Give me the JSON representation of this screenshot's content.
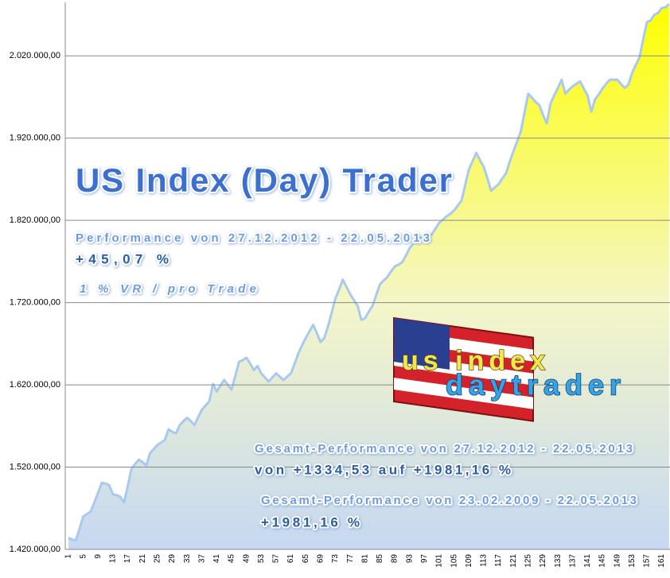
{
  "chart_data": {
    "type": "area",
    "categories": [
      "1",
      null,
      null,
      null,
      "5",
      null,
      null,
      null,
      "9",
      null,
      null,
      null,
      "13",
      null,
      null,
      null,
      "17",
      null,
      null,
      null,
      "21",
      null,
      null,
      null,
      "25",
      null,
      null,
      null,
      "29",
      null,
      null,
      null,
      "33",
      null,
      null,
      null,
      "37",
      null,
      null,
      null,
      "41",
      null,
      null,
      null,
      "45",
      null,
      null,
      null,
      "49",
      null,
      null,
      null,
      "53",
      null,
      null,
      null,
      "57",
      null,
      null,
      null,
      "61",
      null,
      null,
      null,
      "65",
      null,
      null,
      null,
      "69",
      null,
      null,
      null,
      "73",
      null,
      null,
      null,
      "77",
      null,
      null,
      null,
      "81",
      null,
      null,
      null,
      "85",
      null,
      null,
      null,
      "89",
      null,
      null,
      null,
      "93",
      null,
      null,
      null,
      "97",
      null,
      null,
      null,
      "101",
      null,
      null,
      null,
      "105",
      null,
      null,
      null,
      "109",
      null,
      null,
      null,
      "113",
      null,
      null,
      null,
      "117",
      null,
      null,
      null,
      "121",
      null,
      null,
      null,
      "125",
      null,
      null,
      null,
      "129",
      null,
      null,
      null,
      "133",
      null,
      null,
      null,
      "137",
      null,
      null,
      null,
      "141",
      null,
      null,
      null,
      "145",
      null,
      null,
      null,
      "149",
      null,
      null,
      null,
      "153",
      null,
      null,
      null,
      "157",
      null,
      null,
      null,
      "161",
      null,
      null
    ],
    "values": [
      1434000,
      1432000,
      1431000,
      1445000,
      1460000,
      1463000,
      1466000,
      1477000,
      1489000,
      1501000,
      1500000,
      1498000,
      1487000,
      1486000,
      1484000,
      1477000,
      1497000,
      1518000,
      1524000,
      1529000,
      1526000,
      1522000,
      1537000,
      1542000,
      1547000,
      1550000,
      1553000,
      1566000,
      1563000,
      1561000,
      1571000,
      1576000,
      1580000,
      1576000,
      1571000,
      1581000,
      1590000,
      1595000,
      1600000,
      1621000,
      1612000,
      1619000,
      1626000,
      1620000,
      1614000,
      1631000,
      1648000,
      1650000,
      1653000,
      1646000,
      1638000,
      1643000,
      1634000,
      1629000,
      1624000,
      1629000,
      1634000,
      1630000,
      1626000,
      1630000,
      1634000,
      1646000,
      1658000,
      1668000,
      1677000,
      1685000,
      1693000,
      1683000,
      1672000,
      1677000,
      1691000,
      1708000,
      1725000,
      1736000,
      1748000,
      1739000,
      1730000,
      1723000,
      1716000,
      1699000,
      1701000,
      1709000,
      1716000,
      1729000,
      1742000,
      1747000,
      1751000,
      1758000,
      1764000,
      1766000,
      1769000,
      1777000,
      1786000,
      1792000,
      1798000,
      1799000,
      1800000,
      1801000,
      1803000,
      1810000,
      1817000,
      1821000,
      1825000,
      1828000,
      1832000,
      1838000,
      1844000,
      1863000,
      1882000,
      1892000,
      1902000,
      1893000,
      1885000,
      1871000,
      1856000,
      1860000,
      1864000,
      1871000,
      1877000,
      1891000,
      1904000,
      1916000,
      1928000,
      1951000,
      1974000,
      1969000,
      1964000,
      1960000,
      1948000,
      1938000,
      1962000,
      1972000,
      1981000,
      1991000,
      1974000,
      1979000,
      1983000,
      1986000,
      1989000,
      1980000,
      1972000,
      1952000,
      1967000,
      1973000,
      1980000,
      1986000,
      1991000,
      1991000,
      1991000,
      1986000,
      1981000,
      1985000,
      1999000,
      2009000,
      2018000,
      2040000,
      2061000,
      2063000,
      2070000,
      2072000,
      2078000,
      2079000,
      2083000
    ],
    "color": "#ffff00",
    "line_color": "#a9c9ee",
    "grid": true,
    "ylim": [
      1420000,
      2085000
    ],
    "yticks": [
      {
        "value": 1420000,
        "label": "1.420.000,00"
      },
      {
        "value": 1520000,
        "label": "1.520.000,00"
      },
      {
        "value": 1620000,
        "label": "1.620.000,00"
      },
      {
        "value": 1720000,
        "label": "1.720.000,00"
      },
      {
        "value": 1820000,
        "label": "1.820.000,00"
      },
      {
        "value": 1920000,
        "label": "1.920.000,00"
      },
      {
        "value": 2020000,
        "label": "2.020.000,00"
      }
    ],
    "title": "US Index (Day) Trader",
    "annotations": [
      "Performance  von  27.12.2012 - 22.05.2013",
      "+45,07  %",
      "1 % VR / pro Trade",
      "Gesamt-Performance  von  27.12.2012 - 22.05.2013",
      "von +1334,53 auf +1981,16 %",
      "Gesamt-Performance  von  23.02.2009 - 22.05.2013",
      "+1981,16 %"
    ],
    "logo": [
      "us index",
      "daytrader"
    ]
  }
}
